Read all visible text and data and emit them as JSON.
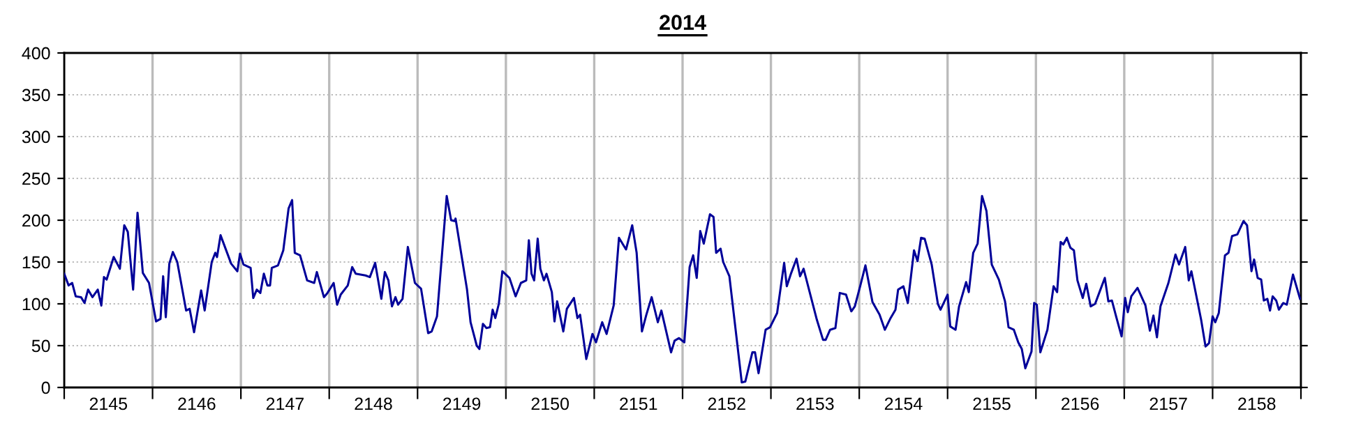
{
  "chart_data": {
    "type": "line",
    "title": "2014",
    "color": "#000099",
    "grid": true,
    "line_style": "solid",
    "marker": "none",
    "xlim": [
      2145,
      2159
    ],
    "ylim": [
      0,
      400
    ],
    "yticks": [
      0,
      50,
      100,
      150,
      200,
      250,
      300,
      350,
      400
    ],
    "xticks": [
      {
        "value": 2145,
        "label": null
      },
      {
        "value": 2146,
        "label": null
      },
      {
        "value": 2147,
        "label": null
      },
      {
        "value": 2148,
        "label": null
      },
      {
        "value": 2149,
        "label": null
      },
      {
        "value": 2150,
        "label": null
      },
      {
        "value": 2151,
        "label": null
      },
      {
        "value": 2152,
        "label": null
      },
      {
        "value": 2153,
        "label": null
      },
      {
        "value": 2154,
        "label": null
      },
      {
        "value": 2155,
        "label": null
      },
      {
        "value": 2156,
        "label": null
      },
      {
        "value": 2157,
        "label": null
      },
      {
        "value": 2158,
        "label": null
      },
      {
        "value": 2159,
        "label": null
      },
      {
        "value": 2145.5,
        "label": "2145"
      },
      {
        "value": 2146.5,
        "label": "2146"
      },
      {
        "value": 2147.5,
        "label": "2147"
      },
      {
        "value": 2148.5,
        "label": "2148"
      },
      {
        "value": 2149.5,
        "label": "2149"
      },
      {
        "value": 2150.5,
        "label": "2150"
      },
      {
        "value": 2151.5,
        "label": "2151"
      },
      {
        "value": 2152.5,
        "label": "2152"
      },
      {
        "value": 2153.5,
        "label": "2153"
      },
      {
        "value": 2154.5,
        "label": "2154"
      },
      {
        "value": 2155.5,
        "label": "2155"
      },
      {
        "value": 2156.5,
        "label": "2156"
      },
      {
        "value": 2157.5,
        "label": "2157"
      },
      {
        "value": 2158.5,
        "label": "2158"
      }
    ],
    "x": [
      2145.0,
      2145.05,
      2145.09,
      2145.13,
      2145.19,
      2145.23,
      2145.27,
      2145.32,
      2145.38,
      2145.42,
      2145.45,
      2145.48,
      2145.56,
      2145.63,
      2145.68,
      2145.72,
      2145.78,
      2145.83,
      2145.89,
      2145.96,
      2146.04,
      2146.09,
      2146.12,
      2146.15,
      2146.19,
      2146.23,
      2146.28,
      2146.38,
      2146.42,
      2146.47,
      2146.55,
      2146.59,
      2146.67,
      2146.71,
      2146.73,
      2146.77,
      2146.89,
      2146.96,
      2146.99,
      2147.03,
      2147.11,
      2147.14,
      2147.18,
      2147.22,
      2147.26,
      2147.3,
      2147.33,
      2147.35,
      2147.42,
      2147.48,
      2147.54,
      2147.58,
      2147.61,
      2147.67,
      2147.75,
      2147.83,
      2147.86,
      2147.94,
      2147.98,
      2148.05,
      2148.09,
      2148.13,
      2148.21,
      2148.26,
      2148.3,
      2148.41,
      2148.46,
      2148.52,
      2148.59,
      2148.63,
      2148.67,
      2148.71,
      2148.75,
      2148.78,
      2148.83,
      2148.89,
      2148.97,
      2149.04,
      2149.12,
      2149.16,
      2149.22,
      2149.33,
      2149.38,
      2149.42,
      2149.43,
      2149.56,
      2149.6,
      2149.67,
      2149.7,
      2149.74,
      2149.78,
      2149.82,
      2149.85,
      2149.88,
      2149.92,
      2149.96,
      2150.04,
      2150.11,
      2150.17,
      2150.23,
      2150.26,
      2150.29,
      2150.32,
      2150.36,
      2150.39,
      2150.43,
      2150.46,
      2150.52,
      2150.55,
      2150.58,
      2150.65,
      2150.69,
      2150.77,
      2150.81,
      2150.84,
      2150.91,
      2150.98,
      2151.02,
      2151.09,
      2151.14,
      2151.22,
      2151.28,
      2151.36,
      2151.43,
      2151.48,
      2151.54,
      2151.59,
      2151.65,
      2151.72,
      2151.76,
      2151.87,
      2151.91,
      2151.96,
      2152.02,
      2152.08,
      2152.12,
      2152.16,
      2152.2,
      2152.24,
      2152.31,
      2152.35,
      2152.38,
      2152.43,
      2152.46,
      2152.53,
      2152.67,
      2152.71,
      2152.79,
      2152.82,
      2152.86,
      2152.94,
      2152.99,
      2153.07,
      2153.15,
      2153.18,
      2153.23,
      2153.29,
      2153.33,
      2153.37,
      2153.52,
      2153.59,
      2153.62,
      2153.67,
      2153.73,
      2153.78,
      2153.85,
      2153.91,
      2153.95,
      2154.01,
      2154.07,
      2154.15,
      2154.23,
      2154.29,
      2154.35,
      2154.41,
      2154.44,
      2154.5,
      2154.55,
      2154.62,
      2154.66,
      2154.7,
      2154.74,
      2154.82,
      2154.89,
      2154.92,
      2155.0,
      2155.03,
      2155.09,
      2155.13,
      2155.21,
      2155.24,
      2155.29,
      2155.34,
      2155.39,
      2155.44,
      2155.5,
      2155.58,
      2155.65,
      2155.69,
      2155.75,
      2155.8,
      2155.84,
      2155.88,
      2155.95,
      2155.98,
      2156.01,
      2156.05,
      2156.13,
      2156.2,
      2156.24,
      2156.28,
      2156.31,
      2156.35,
      2156.39,
      2156.43,
      2156.47,
      2156.53,
      2156.57,
      2156.62,
      2156.67,
      2156.73,
      2156.78,
      2156.82,
      2156.86,
      2156.91,
      2156.97,
      2157.01,
      2157.04,
      2157.08,
      2157.15,
      2157.24,
      2157.29,
      2157.33,
      2157.37,
      2157.41,
      2157.5,
      2157.58,
      2157.62,
      2157.69,
      2157.73,
      2157.76,
      2157.87,
      2157.92,
      2157.96,
      2158.0,
      2158.03,
      2158.07,
      2158.14,
      2158.18,
      2158.22,
      2158.28,
      2158.35,
      2158.39,
      2158.44,
      2158.47,
      2158.51,
      2158.55,
      2158.58,
      2158.62,
      2158.65,
      2158.68,
      2158.72,
      2158.75,
      2158.8,
      2158.84,
      2158.91,
      2158.99
    ],
    "values": [
      136,
      122,
      125,
      109,
      108,
      101,
      117,
      108,
      117,
      98,
      132,
      129,
      156,
      142,
      194,
      186,
      117,
      209,
      137,
      125,
      79,
      82,
      133,
      84,
      148,
      162,
      150,
      92,
      94,
      66,
      116,
      92,
      150,
      161,
      156,
      182,
      148,
      139,
      160,
      147,
      143,
      107,
      117,
      113,
      136,
      122,
      122,
      143,
      146,
      164,
      214,
      224,
      161,
      158,
      128,
      125,
      138,
      108,
      113,
      125,
      99,
      111,
      122,
      144,
      136,
      134,
      132,
      149,
      106,
      138,
      128,
      97,
      108,
      99,
      106,
      168,
      125,
      118,
      65,
      67,
      85,
      229,
      200,
      199,
      202,
      117,
      78,
      50,
      46,
      76,
      71,
      72,
      93,
      83,
      100,
      139,
      131,
      109,
      125,
      128,
      176,
      136,
      128,
      178,
      142,
      128,
      136,
      114,
      79,
      103,
      67,
      94,
      107,
      83,
      87,
      34,
      64,
      54,
      78,
      64,
      98,
      179,
      165,
      194,
      161,
      67,
      87,
      108,
      78,
      92,
      42,
      56,
      59,
      54,
      144,
      158,
      131,
      187,
      172,
      207,
      204,
      161,
      166,
      150,
      133,
      6,
      7,
      42,
      42,
      17,
      69,
      72,
      89,
      149,
      121,
      137,
      154,
      133,
      142,
      81,
      57,
      57,
      69,
      71,
      113,
      111,
      91,
      97,
      121,
      146,
      102,
      87,
      69,
      82,
      93,
      117,
      121,
      101,
      164,
      151,
      179,
      178,
      147,
      100,
      93,
      111,
      73,
      69,
      97,
      126,
      114,
      161,
      172,
      229,
      211,
      147,
      129,
      103,
      72,
      69,
      54,
      46,
      23,
      43,
      101,
      99,
      42,
      69,
      121,
      114,
      174,
      171,
      179,
      167,
      164,
      128,
      107,
      124,
      97,
      100,
      117,
      131,
      103,
      104,
      84,
      61,
      107,
      90,
      109,
      119,
      98,
      68,
      86,
      60,
      97,
      125,
      159,
      147,
      168,
      128,
      139,
      81,
      49,
      53,
      85,
      78,
      89,
      158,
      161,
      181,
      183,
      199,
      194,
      139,
      153,
      131,
      129,
      104,
      106,
      92,
      109,
      104,
      93,
      101,
      99,
      135,
      106
    ]
  }
}
